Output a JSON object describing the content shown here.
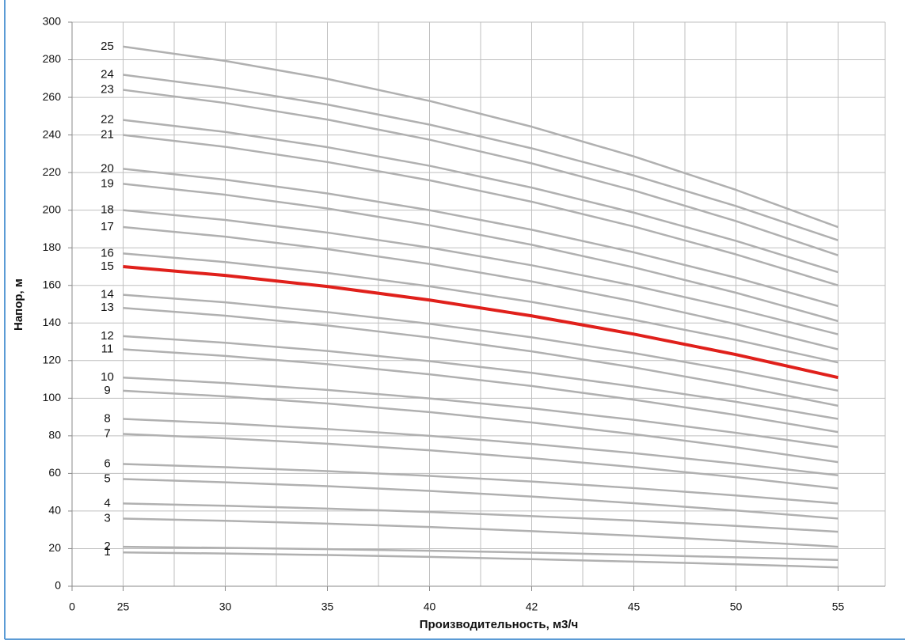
{
  "chart_data": {
    "type": "line",
    "xlabel": "Производительность, м3/ч",
    "ylabel": "Напор, м",
    "categories": [
      "0",
      "25",
      "30",
      "35",
      "40",
      "42",
      "45",
      "50",
      "55"
    ],
    "ylim": [
      0,
      300
    ],
    "yticks": [
      0,
      20,
      40,
      60,
      80,
      100,
      120,
      140,
      160,
      180,
      200,
      220,
      240,
      260,
      280,
      300
    ],
    "grid": true,
    "series": [
      {
        "name": "1",
        "color": "#b0b0b0",
        "values": [
          null,
          18,
          17.4,
          16.6,
          15.6,
          14.4,
          13.1,
          11.7,
          10
        ]
      },
      {
        "name": "2",
        "color": "#b0b0b0",
        "values": [
          null,
          21,
          20.4,
          19.7,
          18.9,
          17.9,
          16.7,
          15.4,
          14
        ]
      },
      {
        "name": "3",
        "color": "#b0b0b0",
        "values": [
          null,
          36,
          34.8,
          33.3,
          31.5,
          29.3,
          26.9,
          24.1,
          21
        ]
      },
      {
        "name": "4",
        "color": "#b0b0b0",
        "values": [
          null,
          44,
          42.8,
          41.3,
          39.5,
          37.3,
          34.9,
          32.1,
          29
        ]
      },
      {
        "name": "5",
        "color": "#b0b0b0",
        "values": [
          null,
          57,
          55.3,
          53.2,
          50.7,
          47.7,
          44.2,
          40.3,
          36
        ]
      },
      {
        "name": "6",
        "color": "#b0b0b0",
        "values": [
          null,
          65,
          63.3,
          61.2,
          58.7,
          55.7,
          52.2,
          48.3,
          44
        ]
      },
      {
        "name": "7",
        "color": "#b0b0b0",
        "values": [
          null,
          81,
          78.7,
          75.8,
          72.3,
          68.1,
          63.4,
          58.0,
          52
        ]
      },
      {
        "name": "8",
        "color": "#b0b0b0",
        "values": [
          null,
          89,
          86.6,
          83.6,
          80.0,
          75.7,
          70.8,
          65.2,
          59
        ]
      },
      {
        "name": "9",
        "color": "#b0b0b0",
        "values": [
          null,
          104,
          101.0,
          97.2,
          92.6,
          87.1,
          80.9,
          73.9,
          66
        ]
      },
      {
        "name": "10",
        "color": "#b0b0b0",
        "values": [
          null,
          111,
          108.1,
          104.4,
          99.9,
          94.6,
          88.5,
          81.6,
          74
        ]
      },
      {
        "name": "11",
        "color": "#b0b0b0",
        "values": [
          null,
          126,
          122.5,
          118.1,
          112.7,
          106.5,
          99.2,
          91.1,
          82
        ]
      },
      {
        "name": "12",
        "color": "#b0b0b0",
        "values": [
          null,
          133,
          129.5,
          125.1,
          119.7,
          113.5,
          106.2,
          98.1,
          89
        ]
      },
      {
        "name": "13",
        "color": "#b0b0b0",
        "values": [
          null,
          148,
          143.9,
          138.7,
          132.3,
          124.9,
          116.4,
          106.7,
          96
        ]
      },
      {
        "name": "14",
        "color": "#b0b0b0",
        "values": [
          null,
          155,
          151.0,
          145.8,
          139.6,
          132.4,
          124.0,
          114.5,
          104
        ]
      },
      {
        "name": "15",
        "color": "#e0201b",
        "values": [
          null,
          170,
          165.3,
          159.4,
          152.2,
          143.8,
          134.1,
          123.2,
          111
        ]
      },
      {
        "name": "16",
        "color": "#b0b0b0",
        "values": [
          null,
          177,
          172.4,
          166.6,
          159.5,
          151.2,
          141.7,
          131.0,
          119
        ]
      },
      {
        "name": "17",
        "color": "#b0b0b0",
        "values": [
          null,
          191,
          185.9,
          179.3,
          171.4,
          162.1,
          151.5,
          139.4,
          126
        ]
      },
      {
        "name": "18",
        "color": "#b0b0b0",
        "values": [
          null,
          200,
          194.8,
          188.1,
          180.1,
          170.7,
          159.9,
          147.6,
          134
        ]
      },
      {
        "name": "19",
        "color": "#b0b0b0",
        "values": [
          null,
          214,
          208.2,
          200.9,
          192.0,
          181.6,
          169.6,
          156.1,
          141
        ]
      },
      {
        "name": "20",
        "color": "#b0b0b0",
        "values": [
          null,
          222,
          216.2,
          208.9,
          200.0,
          189.6,
          177.6,
          164.1,
          149
        ]
      },
      {
        "name": "21",
        "color": "#b0b0b0",
        "values": [
          null,
          240,
          233.7,
          225.6,
          215.9,
          204.5,
          191.3,
          176.5,
          160
        ]
      },
      {
        "name": "22",
        "color": "#b0b0b0",
        "values": [
          null,
          248,
          241.6,
          233.5,
          223.6,
          212.0,
          198.7,
          183.7,
          167
        ]
      },
      {
        "name": "23",
        "color": "#b0b0b0",
        "values": [
          null,
          264,
          257.0,
          248.2,
          237.5,
          224.9,
          210.5,
          194.2,
          176
        ]
      },
      {
        "name": "24",
        "color": "#b0b0b0",
        "values": [
          null,
          272,
          265.0,
          256.2,
          245.5,
          232.9,
          218.5,
          202.2,
          184
        ]
      },
      {
        "name": "25",
        "color": "#b0b0b0",
        "values": [
          null,
          287,
          279.4,
          269.8,
          258.1,
          244.4,
          228.6,
          210.8,
          191
        ]
      }
    ]
  }
}
